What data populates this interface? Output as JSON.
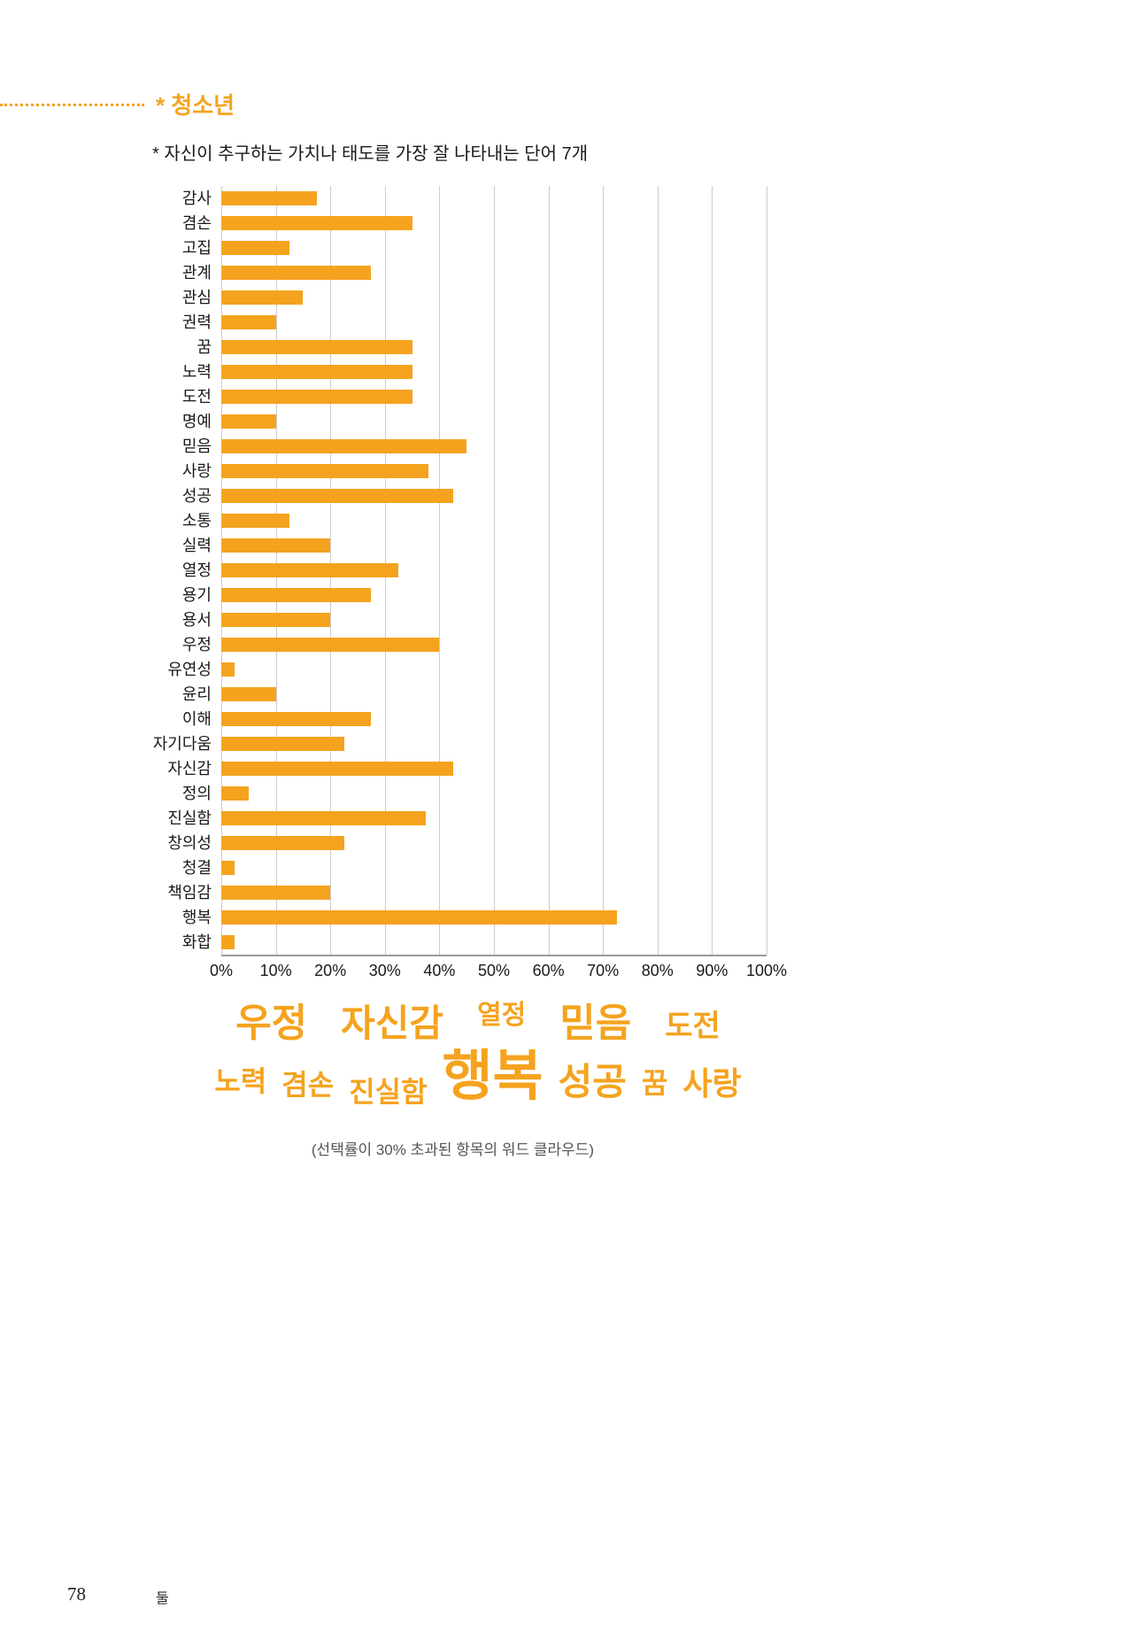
{
  "page": {
    "section_title": "* 청소년",
    "subtitle": "* 자신이 추구하는 가치나 태도를 가장 잘 나타내는 단어 7개",
    "wordcloud_caption": "(선택률이 30% 초과된 항목의 워드 클라우드)",
    "page_number": "78",
    "part_label": "둘"
  },
  "colors": {
    "accent": "#F5A31E",
    "gridline": "#CCCCCC",
    "axis_line": "#999999",
    "text": "#1A1A1A",
    "caption": "#555555"
  },
  "chart_data": {
    "type": "bar",
    "orientation": "horizontal",
    "categories": [
      "감사",
      "겸손",
      "고집",
      "관계",
      "관심",
      "권력",
      "꿈",
      "노력",
      "도전",
      "명예",
      "믿음",
      "사랑",
      "성공",
      "소통",
      "실력",
      "열정",
      "용기",
      "용서",
      "우정",
      "유연성",
      "윤리",
      "이해",
      "자기다움",
      "자신감",
      "정의",
      "진실함",
      "창의성",
      "청결",
      "책임감",
      "행복",
      "화합"
    ],
    "values": [
      17.5,
      35,
      12.5,
      27.5,
      15,
      10,
      35,
      35,
      35,
      10,
      45,
      38,
      42.5,
      12.5,
      20,
      32.5,
      27.5,
      20,
      40,
      2.5,
      10,
      27.5,
      22.5,
      42.5,
      5,
      37.5,
      22.5,
      2.5,
      20,
      72.5,
      2.5
    ],
    "value_unit": "%",
    "xlim": [
      0,
      100
    ],
    "x_tick_labels": [
      "0%",
      "10%",
      "20%",
      "30%",
      "40%",
      "50%",
      "60%",
      "70%",
      "80%",
      "90%",
      "100%"
    ],
    "grid": "vertical gridlines every 10%",
    "legend": "none",
    "bar_color": "#F5A31E"
  },
  "word_cloud": {
    "rows": [
      [
        {
          "text": "우정",
          "size": 44,
          "dy": 0
        },
        {
          "text": "자신감",
          "size": 42,
          "dy": 0
        },
        {
          "text": "열정",
          "size": 30,
          "dy": -14
        },
        {
          "text": "믿음",
          "size": 44,
          "dy": 0
        },
        {
          "text": "도전",
          "size": 34,
          "dy": 0
        }
      ],
      [
        {
          "text": "노력",
          "size": 32,
          "dy": -4
        },
        {
          "text": "겸손",
          "size": 32,
          "dy": 0
        },
        {
          "text": "진실함",
          "size": 32,
          "dy": 8
        },
        {
          "text": "행복",
          "size": 62,
          "dy": 0
        },
        {
          "text": "성공",
          "size": 42,
          "dy": 0
        },
        {
          "text": "꿈",
          "size": 32,
          "dy": -2
        },
        {
          "text": "사랑",
          "size": 36,
          "dy": 0
        }
      ]
    ]
  }
}
